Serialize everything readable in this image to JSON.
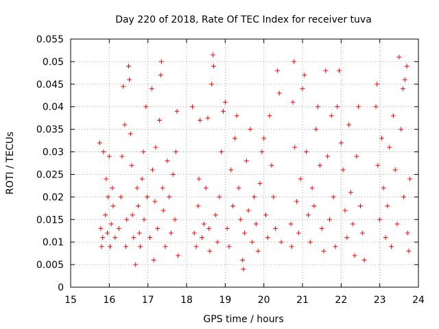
{
  "chart_data": {
    "type": "scatter",
    "title": "Day 220 of 2018, Rate Of TEC Index for receiver tuva",
    "xlabel": "GPS time / hours",
    "ylabel": "ROTI / TECUs",
    "xlim": [
      15,
      24
    ],
    "ylim": [
      0,
      0.055
    ],
    "xticks": [
      15,
      16,
      17,
      18,
      19,
      20,
      21,
      22,
      23,
      24
    ],
    "yticks": [
      0,
      0.005,
      0.01,
      0.015,
      0.02,
      0.025,
      0.03,
      0.035,
      0.04,
      0.045,
      0.05,
      0.055
    ],
    "ytick_labels": [
      "0",
      "0.005",
      "0.01",
      "0.015",
      "0.02",
      "0.025",
      "0.03",
      "0.035",
      "0.04",
      "0.045",
      "0.05",
      "0.055"
    ],
    "grid": true,
    "marker": "+",
    "color": "#ff0000",
    "series": [
      {
        "name": "ROTI",
        "points": [
          [
            15.75,
            0.032
          ],
          [
            15.78,
            0.013
          ],
          [
            15.8,
            0.009
          ],
          [
            15.83,
            0.011
          ],
          [
            15.85,
            0.03
          ],
          [
            15.9,
            0.016
          ],
          [
            15.92,
            0.024
          ],
          [
            15.95,
            0.012
          ],
          [
            15.97,
            0.02
          ],
          [
            16.0,
            0.029
          ],
          [
            16.02,
            0.009
          ],
          [
            16.05,
            0.014
          ],
          [
            16.08,
            0.022
          ],
          [
            16.1,
            0.018
          ],
          [
            16.15,
            0.011
          ],
          [
            16.25,
            0.013
          ],
          [
            16.3,
            0.02
          ],
          [
            16.33,
            0.029
          ],
          [
            16.36,
            0.0445
          ],
          [
            16.4,
            0.036
          ],
          [
            16.43,
            0.009
          ],
          [
            16.45,
            0.015
          ],
          [
            16.5,
            0.049
          ],
          [
            16.52,
            0.046
          ],
          [
            16.55,
            0.034
          ],
          [
            16.58,
            0.027
          ],
          [
            16.6,
            0.016
          ],
          [
            16.63,
            0.011
          ],
          [
            16.68,
            0.005
          ],
          [
            16.72,
            0.022
          ],
          [
            16.75,
            0.018
          ],
          [
            16.78,
            0.012
          ],
          [
            16.8,
            0.009
          ],
          [
            16.85,
            0.024
          ],
          [
            16.88,
            0.03
          ],
          [
            16.9,
            0.015
          ],
          [
            16.95,
            0.04
          ],
          [
            16.98,
            0.02
          ],
          [
            17.05,
            0.011
          ],
          [
            17.1,
            0.044
          ],
          [
            17.12,
            0.026
          ],
          [
            17.15,
            0.006
          ],
          [
            17.18,
            0.019
          ],
          [
            17.2,
            0.031
          ],
          [
            17.25,
            0.013
          ],
          [
            17.3,
            0.037
          ],
          [
            17.33,
            0.047
          ],
          [
            17.35,
            0.05
          ],
          [
            17.38,
            0.022
          ],
          [
            17.4,
            0.017
          ],
          [
            17.45,
            0.009
          ],
          [
            17.5,
            0.028
          ],
          [
            17.55,
            0.02
          ],
          [
            17.6,
            0.012
          ],
          [
            17.65,
            0.025
          ],
          [
            17.7,
            0.015
          ],
          [
            17.72,
            0.03
          ],
          [
            17.75,
            0.039
          ],
          [
            17.78,
            0.007
          ],
          [
            18.15,
            0.04
          ],
          [
            18.2,
            0.012
          ],
          [
            18.25,
            0.009
          ],
          [
            18.3,
            0.018
          ],
          [
            18.32,
            0.024
          ],
          [
            18.35,
            0.037
          ],
          [
            18.4,
            0.011
          ],
          [
            18.45,
            0.014
          ],
          [
            18.5,
            0.022
          ],
          [
            18.55,
            0.0375
          ],
          [
            18.58,
            0.013
          ],
          [
            18.6,
            0.008
          ],
          [
            18.65,
            0.045
          ],
          [
            18.68,
            0.0515
          ],
          [
            18.7,
            0.049
          ],
          [
            18.75,
            0.016
          ],
          [
            18.8,
            0.01
          ],
          [
            18.85,
            0.02
          ],
          [
            18.9,
            0.03
          ],
          [
            18.95,
            0.039
          ],
          [
            19.0,
            0.041
          ],
          [
            19.05,
            0.013
          ],
          [
            19.1,
            0.009
          ],
          [
            19.15,
            0.026
          ],
          [
            19.2,
            0.018
          ],
          [
            19.25,
            0.033
          ],
          [
            19.3,
            0.038
          ],
          [
            19.35,
            0.022
          ],
          [
            19.4,
            0.015
          ],
          [
            19.45,
            0.006
          ],
          [
            19.47,
            0.004
          ],
          [
            19.5,
            0.012
          ],
          [
            19.55,
            0.028
          ],
          [
            19.6,
            0.017
          ],
          [
            19.65,
            0.035
          ],
          [
            19.7,
            0.01
          ],
          [
            19.75,
            0.02
          ],
          [
            19.8,
            0.014
          ],
          [
            19.85,
            0.008
          ],
          [
            19.9,
            0.023
          ],
          [
            19.95,
            0.03
          ],
          [
            20.0,
            0.033
          ],
          [
            20.05,
            0.016
          ],
          [
            20.1,
            0.011
          ],
          [
            20.15,
            0.038
          ],
          [
            20.2,
            0.027
          ],
          [
            20.25,
            0.02
          ],
          [
            20.3,
            0.013
          ],
          [
            20.35,
            0.048
          ],
          [
            20.4,
            0.043
          ],
          [
            20.45,
            0.01
          ],
          [
            20.7,
            0.014
          ],
          [
            20.72,
            0.009
          ],
          [
            20.75,
            0.041
          ],
          [
            20.78,
            0.05
          ],
          [
            20.8,
            0.031
          ],
          [
            20.85,
            0.019
          ],
          [
            20.9,
            0.012
          ],
          [
            20.95,
            0.024
          ],
          [
            21.0,
            0.044
          ],
          [
            21.05,
            0.047
          ],
          [
            21.1,
            0.03
          ],
          [
            21.15,
            0.016
          ],
          [
            21.2,
            0.01
          ],
          [
            21.25,
            0.022
          ],
          [
            21.3,
            0.018
          ],
          [
            21.35,
            0.035
          ],
          [
            21.4,
            0.04
          ],
          [
            21.45,
            0.027
          ],
          [
            21.5,
            0.013
          ],
          [
            21.55,
            0.008
          ],
          [
            21.6,
            0.048
          ],
          [
            21.65,
            0.029
          ],
          [
            21.7,
            0.015
          ],
          [
            21.75,
            0.038
          ],
          [
            21.8,
            0.02
          ],
          [
            21.85,
            0.009
          ],
          [
            21.9,
            0.04
          ],
          [
            21.95,
            0.048
          ],
          [
            22.0,
            0.032
          ],
          [
            22.05,
            0.026
          ],
          [
            22.1,
            0.017
          ],
          [
            22.15,
            0.011
          ],
          [
            22.2,
            0.036
          ],
          [
            22.25,
            0.021
          ],
          [
            22.3,
            0.014
          ],
          [
            22.35,
            0.007
          ],
          [
            22.4,
            0.029
          ],
          [
            22.45,
            0.04
          ],
          [
            22.5,
            0.018
          ],
          [
            22.55,
            0.012
          ],
          [
            22.6,
            0.006
          ],
          [
            22.9,
            0.04
          ],
          [
            22.93,
            0.045
          ],
          [
            22.95,
            0.027
          ],
          [
            23.0,
            0.015
          ],
          [
            23.05,
            0.033
          ],
          [
            23.1,
            0.022
          ],
          [
            23.15,
            0.011
          ],
          [
            23.2,
            0.018
          ],
          [
            23.25,
            0.031
          ],
          [
            23.3,
            0.009
          ],
          [
            23.35,
            0.038
          ],
          [
            23.4,
            0.026
          ],
          [
            23.45,
            0.014
          ],
          [
            23.5,
            0.051
          ],
          [
            23.55,
            0.035
          ],
          [
            23.6,
            0.044
          ],
          [
            23.62,
            0.02
          ],
          [
            23.65,
            0.046
          ],
          [
            23.7,
            0.049
          ],
          [
            23.72,
            0.012
          ],
          [
            23.75,
            0.008
          ],
          [
            23.78,
            0.024
          ]
        ]
      }
    ]
  }
}
